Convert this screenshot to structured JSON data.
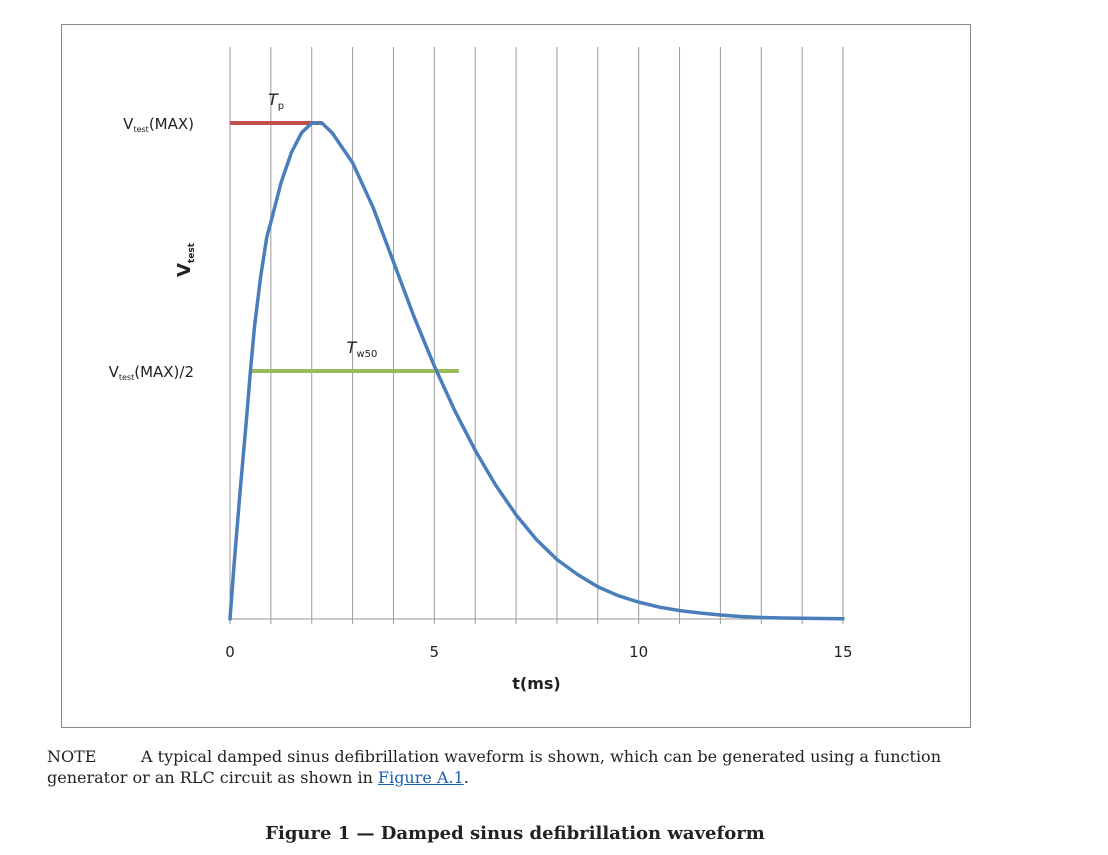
{
  "chart_data": {
    "type": "line",
    "title": "",
    "xlabel": "t(ms)",
    "ylabel": "V",
    "ylabel_sub": "test",
    "xlim": [
      0,
      15
    ],
    "ylim": [
      0,
      1
    ],
    "x_ticks": [
      0,
      5,
      10,
      15
    ],
    "x_tick_labels": [
      "0",
      "5",
      "10",
      "15"
    ],
    "vertical_grid": [
      0,
      1,
      2,
      3,
      4,
      5,
      6,
      7,
      8,
      9,
      10,
      11,
      12,
      13,
      14,
      15
    ],
    "grid": "vertical",
    "series": [
      {
        "color": "#4a7ebb",
        "x": [
          0,
          0.1,
          0.25,
          0.4,
          0.5,
          0.6,
          0.75,
          0.9,
          1.0,
          1.25,
          1.5,
          1.75,
          2.0,
          2.25,
          2.5,
          3.0,
          3.5,
          4.0,
          4.5,
          5.0,
          5.5,
          6.0,
          6.5,
          7.0,
          7.5,
          8.0,
          8.5,
          9.0,
          9.5,
          10.0,
          10.5,
          11.0,
          11.5,
          12.0,
          12.5,
          13.0,
          13.5,
          14.0,
          14.5,
          15.0
        ],
        "y": [
          0,
          0.11,
          0.26,
          0.4,
          0.5,
          0.59,
          0.69,
          0.77,
          0.8,
          0.88,
          0.94,
          0.98,
          1.0,
          1.0,
          0.98,
          0.92,
          0.83,
          0.72,
          0.61,
          0.51,
          0.42,
          0.34,
          0.27,
          0.21,
          0.16,
          0.12,
          0.09,
          0.065,
          0.047,
          0.034,
          0.024,
          0.017,
          0.012,
          0.008,
          0.005,
          0.003,
          0.002,
          0.0015,
          0.001,
          0.0005
        ]
      }
    ],
    "annotations": [
      {
        "text": "T",
        "subscript": "p",
        "x_start": 0,
        "x_end": 2.25,
        "y": 1.0,
        "color": "#c0504d"
      },
      {
        "text": "T",
        "subscript": "w50",
        "x_start": 0.5,
        "x_end": 5.6,
        "y": 0.5,
        "color": "#9bbb59"
      }
    ],
    "y_level_labels": [
      {
        "main": "V",
        "sub": "test",
        "suffix": "(MAX)",
        "y": 1.0
      },
      {
        "main": "V",
        "sub": "test",
        "suffix": "(MAX)/2",
        "y": 0.5
      }
    ]
  },
  "note": {
    "label": "NOTE",
    "text": "A typical damped sinus defibrillation waveform is shown, which can be generated using a function generator or an RLC circuit as shown in ",
    "link": "Figure A.1",
    "end": "."
  },
  "caption": "Figure 1 — Damped sinus defibrillation waveform"
}
